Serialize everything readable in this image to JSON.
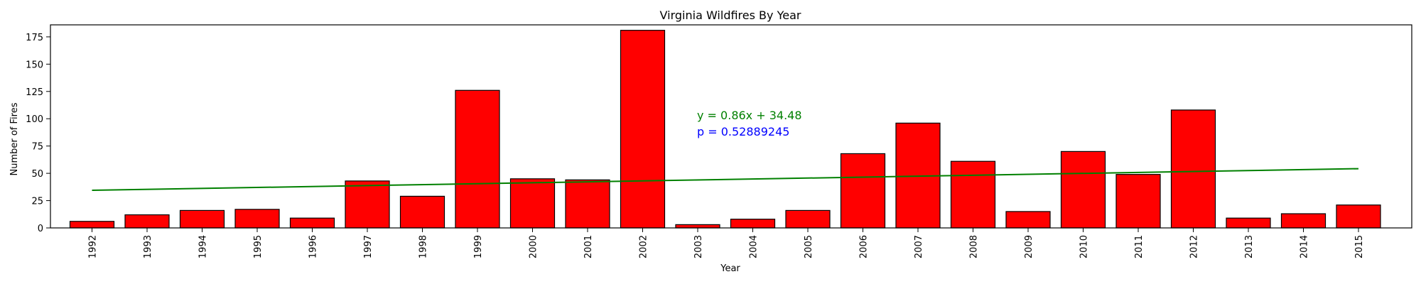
{
  "chart_data": {
    "type": "bar",
    "title": "Virginia Wildfires By Year",
    "xlabel": "Year",
    "ylabel": "Number of Fires",
    "categories": [
      "1992",
      "1993",
      "1994",
      "1995",
      "1996",
      "1997",
      "1998",
      "1999",
      "2000",
      "2001",
      "2002",
      "2003",
      "2004",
      "2005",
      "2006",
      "2007",
      "2008",
      "2009",
      "2010",
      "2011",
      "2012",
      "2013",
      "2014",
      "2015"
    ],
    "values": [
      6,
      12,
      16,
      17,
      9,
      43,
      29,
      126,
      45,
      44,
      181,
      3,
      8,
      16,
      68,
      96,
      61,
      15,
      70,
      49,
      108,
      9,
      13,
      21
    ],
    "ylim": [
      0,
      186
    ],
    "yticks": [
      0,
      25,
      50,
      75,
      100,
      125,
      150,
      175
    ],
    "bar_color": "#ff0000",
    "bar_edge_color": "#000000",
    "trend_line": {
      "slope": 0.86,
      "intercept": 34.48,
      "color": "#008000",
      "equation_label": "y = 0.86x + 34.48"
    },
    "p_value": {
      "label": "p = 0.52889245",
      "color": "#0000ff"
    }
  }
}
